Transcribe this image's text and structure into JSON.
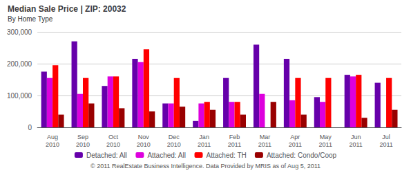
{
  "chart_data": {
    "type": "bar",
    "title": "Median Sale Price | ZIP: 20032",
    "subtitle": "By Home Type",
    "footer": "© 2011 RealEstate Business Intelligence. Data Provided by MRIS as of Aug 5, 2011",
    "categories": [
      "Aug\n2010",
      "Sep\n2010",
      "Oct\n2010",
      "Nov\n2010",
      "Dec\n2010",
      "Jan\n2011",
      "Feb\n2011",
      "Mar\n2011",
      "Apr\n2011",
      "May\n2011",
      "Jun\n2011",
      "Jul\n2011"
    ],
    "series": [
      {
        "name": "Detached: All",
        "color": "#6600aa",
        "values": [
          175000,
          270000,
          130000,
          215000,
          75000,
          20000,
          155000,
          260000,
          215000,
          95000,
          165000,
          140000
        ]
      },
      {
        "name": "Attached: All",
        "color": "#dd00dd",
        "values": [
          155000,
          105000,
          160000,
          205000,
          75000,
          75000,
          80000,
          105000,
          85000,
          80000,
          160000,
          0
        ]
      },
      {
        "name": "Attached: TH",
        "color": "#ff0000",
        "values": [
          195000,
          155000,
          160000,
          245000,
          155000,
          80000,
          80000,
          0,
          155000,
          155000,
          165000,
          155000
        ]
      },
      {
        "name": "Attached: Condo/Coop",
        "color": "#990000",
        "values": [
          40000,
          75000,
          60000,
          50000,
          65000,
          55000,
          40000,
          80000,
          40000,
          0,
          30000,
          55000
        ]
      }
    ],
    "ylim": [
      0,
      300000
    ],
    "yticks": [
      0,
      {
        "value": 100000,
        "label": "100,000"
      },
      {
        "value": 200000,
        "label": "200,000"
      },
      {
        "value": 300000,
        "label": "300,000"
      }
    ],
    "grid": true,
    "legend": "bottom"
  }
}
